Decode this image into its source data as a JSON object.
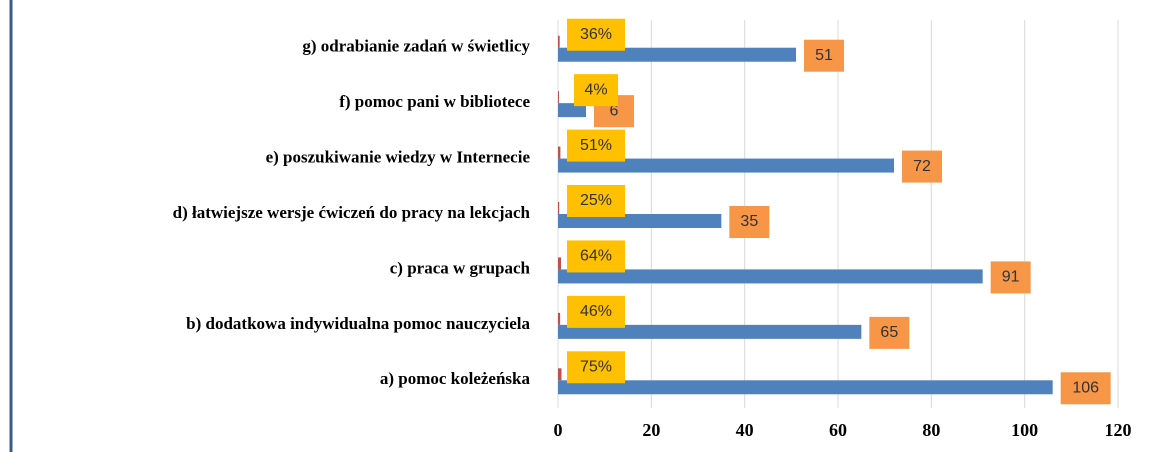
{
  "chart_data": {
    "type": "bar",
    "orientation": "horizontal",
    "categories": [
      "a) pomoc koleżeńska",
      "b) dodatkowa indywidualna pomoc nauczyciela",
      "c) praca w grupach",
      "d) łatwiejsze wersje ćwiczeń do pracy na lekcjach",
      "e) poszukiwanie wiedzy w Internecie",
      "f) pomoc pani w bibliotece",
      "g) odrabianie zadań w świetlicy"
    ],
    "series": [
      {
        "color": "#4f81bd",
        "label_color": "#f79646",
        "values": [
          106,
          65,
          91,
          35,
          72,
          6,
          51
        ]
      },
      {
        "color": "#c0504d",
        "label_color": "#ffc000",
        "values": [
          0.75,
          0.46,
          0.64,
          0.25,
          0.51,
          0.04,
          0.36
        ],
        "value_labels": [
          "75%",
          "46%",
          "64%",
          "25%",
          "51%",
          "4%",
          "36%"
        ]
      }
    ],
    "xlim": [
      0,
      120
    ],
    "xticks": [
      0,
      20,
      40,
      60,
      80,
      100,
      120
    ],
    "grid": true
  }
}
